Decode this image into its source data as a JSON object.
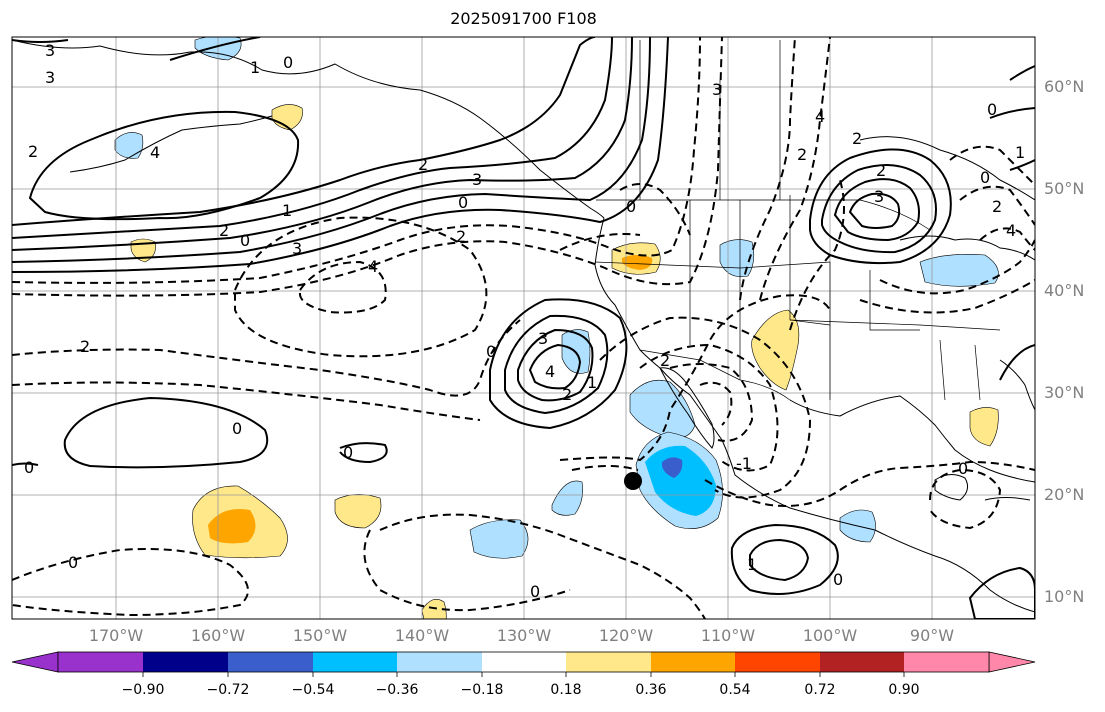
{
  "title": "2025091700 F108",
  "lat_labels": [
    "60°N",
    "50°N",
    "40°N",
    "30°N",
    "20°N",
    "10°N"
  ],
  "lon_labels": [
    "170°W",
    "160°W",
    "150°W",
    "140°W",
    "130°W",
    "120°W",
    "110°W",
    "100°W",
    "90°W"
  ],
  "colorbar": {
    "colors": [
      "#9932cc",
      "#00008b",
      "#3a5fcd",
      "#00bfff",
      "#b0e0ff",
      "#ffffff",
      "#ffe88a",
      "#ffa500",
      "#ff4500",
      "#b22222",
      "#ff88aa"
    ],
    "tick_labels": [
      "−0.90",
      "−0.72",
      "−0.54",
      "−0.36",
      "−0.18",
      "0.18",
      "0.36",
      "0.54",
      "0.72",
      "0.90"
    ]
  },
  "contour_labels": [
    "3",
    "3",
    "0",
    "1",
    "2",
    "4",
    "2",
    "3",
    "0",
    "2",
    "1",
    "0",
    "3",
    "2",
    "4",
    "2",
    "0",
    "3",
    "4",
    "2",
    "0",
    "0",
    "3",
    "0",
    "0",
    "-1",
    "0",
    "1",
    "0",
    "0",
    "0",
    "1",
    "3",
    "2",
    "2",
    "4",
    "2",
    "4",
    "0",
    "0",
    "2",
    "1",
    "2"
  ],
  "marker": {
    "name": "black-dot",
    "lon": -119.1,
    "lat": 21.5
  }
}
